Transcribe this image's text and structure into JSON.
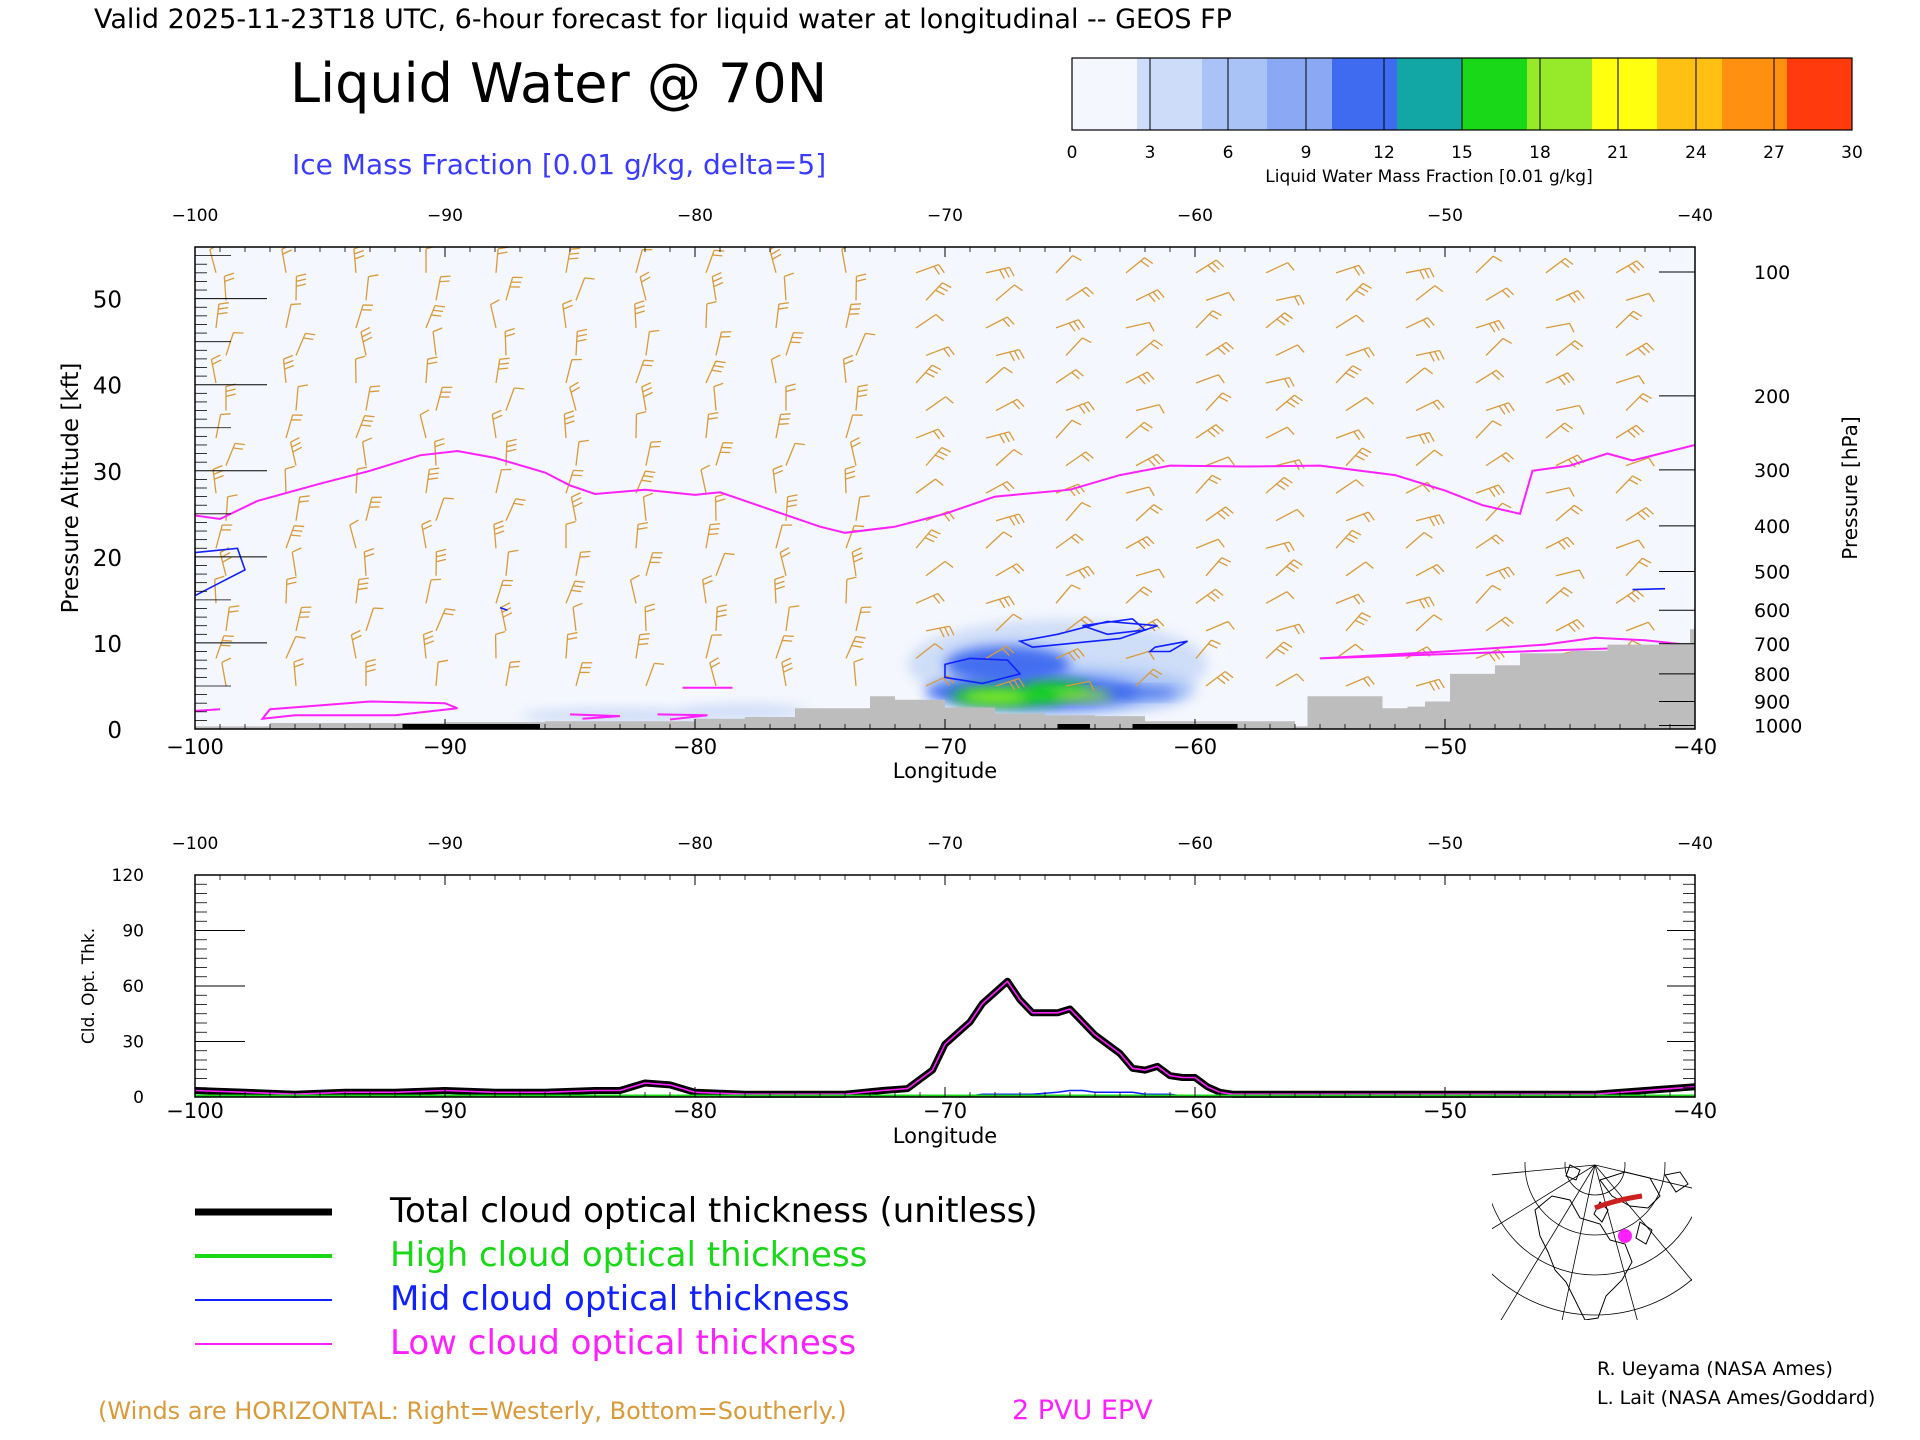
{
  "header": {
    "valid_line": "Valid 2025-11-23T18 UTC, 6-hour forecast for liquid water at longitudinal -- GEOS FP",
    "title": "Liquid Water @ 70N",
    "ice_label": "Ice Mass Fraction [0.01 g/kg, delta=5]"
  },
  "colorbar": {
    "label": "Liquid Water Mass Fraction [0.01 g/kg]",
    "ticks": [
      "0",
      "3",
      "6",
      "9",
      "12",
      "15",
      "18",
      "21",
      "24",
      "27",
      "30"
    ],
    "colors": [
      "#f4f7fd",
      "#cddcf8",
      "#a9c3f6",
      "#8aa8f3",
      "#3e6bef",
      "#12a7a5",
      "#19d818",
      "#96ea2a",
      "#ffff10",
      "#ffc014",
      "#ff9010",
      "#ff3a0c"
    ]
  },
  "chart_data": [
    {
      "type": "heatmap",
      "title": "Liquid Water @ 70N",
      "xlabel": "Longitude",
      "ylabel": "Pressure Altitude [kft]",
      "ylabel_right": "Pressure [hPa]",
      "xlim": [
        -100,
        -40
      ],
      "ylim": [
        0,
        56
      ],
      "x_ticks": [
        "-100",
        "-90",
        "-80",
        "-70",
        "-60",
        "-50",
        "-40"
      ],
      "y_ticks": [
        "0",
        "10",
        "20",
        "30",
        "40",
        "50"
      ],
      "pressure_ticks": [
        {
          "label": "100",
          "kft": 53.1
        },
        {
          "label": "200",
          "kft": 38.7
        },
        {
          "label": "300",
          "kft": 30.1
        },
        {
          "label": "400",
          "kft": 23.6
        },
        {
          "label": "500",
          "kft": 18.3
        },
        {
          "label": "600",
          "kft": 13.8
        },
        {
          "label": "700",
          "kft": 9.9
        },
        {
          "label": "800",
          "kft": 6.4
        },
        {
          "label": "900",
          "kft": 3.2
        },
        {
          "label": "1000",
          "kft": 0.4
        }
      ],
      "epv_2pvu_line": {
        "label": "2 PVU EPV",
        "points": [
          [
            -100,
            24.8
          ],
          [
            -99,
            24.4
          ],
          [
            -97.5,
            26.5
          ],
          [
            -95,
            28.5
          ],
          [
            -93,
            30
          ],
          [
            -91,
            31.8
          ],
          [
            -89.5,
            32.3
          ],
          [
            -88,
            31.5
          ],
          [
            -86,
            29.8
          ],
          [
            -85,
            28.3
          ],
          [
            -84,
            27.3
          ],
          [
            -82,
            27.8
          ],
          [
            -80,
            27.2
          ],
          [
            -79,
            27.5
          ],
          [
            -77.5,
            26
          ],
          [
            -75,
            23.5
          ],
          [
            -74,
            22.8
          ],
          [
            -72,
            23.5
          ],
          [
            -70,
            25
          ],
          [
            -68,
            27
          ],
          [
            -65,
            27.8
          ],
          [
            -63,
            29.5
          ],
          [
            -61,
            30.6
          ],
          [
            -58,
            30.5
          ],
          [
            -55,
            30.6
          ],
          [
            -52,
            29.5
          ],
          [
            -50,
            27.7
          ],
          [
            -48.5,
            26
          ],
          [
            -47,
            25
          ],
          [
            -46.5,
            30
          ],
          [
            -45,
            30.6
          ],
          [
            -43.5,
            32
          ],
          [
            -42.5,
            31.2
          ],
          [
            -40,
            33
          ]
        ]
      },
      "epv_low_contours": [
        [
          [
            -97,
            2.3
          ],
          [
            -93,
            3.2
          ],
          [
            -90,
            3.0
          ],
          [
            -89.5,
            2.4
          ],
          [
            -92,
            1.6
          ],
          [
            -96,
            1.6
          ],
          [
            -97.3,
            1.2
          ]
        ],
        [
          [
            -100,
            2.1
          ],
          [
            -99,
            2.3
          ]
        ],
        [
          [
            -85,
            1.7
          ],
          [
            -83,
            1.5
          ],
          [
            -84.5,
            1.2
          ]
        ],
        [
          [
            -81.5,
            1.7
          ],
          [
            -79.5,
            1.6
          ],
          [
            -81,
            1.1
          ]
        ],
        [
          [
            -80.5,
            4.8
          ],
          [
            -78.5,
            4.8
          ]
        ],
        [
          [
            -55,
            8.2
          ],
          [
            -50,
            9.0
          ],
          [
            -46,
            9.8
          ],
          [
            -44,
            10.6
          ],
          [
            -42,
            10.3
          ],
          [
            -40,
            9.7
          ]
        ]
      ],
      "ice_contours": [
        [
          [
            -100,
            20.5
          ],
          [
            -98.3,
            21
          ],
          [
            -98,
            18.5
          ],
          [
            -99,
            17
          ],
          [
            -100,
            15.5
          ]
        ],
        [
          [
            -70,
            7.5
          ],
          [
            -69,
            8.2
          ],
          [
            -67.5,
            8
          ],
          [
            -67,
            6.4
          ],
          [
            -68.5,
            5.3
          ],
          [
            -70,
            6
          ]
        ],
        [
          [
            -66.5,
            9.5
          ],
          [
            -63,
            10.5
          ],
          [
            -61.5,
            12
          ],
          [
            -63.5,
            12.5
          ],
          [
            -65.5,
            11
          ],
          [
            -67,
            10.2
          ]
        ],
        [
          [
            -64.5,
            12
          ],
          [
            -62.5,
            12.8
          ],
          [
            -62,
            11.5
          ],
          [
            -63.5,
            11
          ]
        ],
        [
          [
            -61.6,
            9.5
          ],
          [
            -60.3,
            10.2
          ],
          [
            -61,
            9
          ],
          [
            -61.8,
            9
          ]
        ],
        [
          [
            -42.5,
            16.2
          ],
          [
            -41.2,
            16.3
          ]
        ],
        [
          [
            -87.8,
            14.1
          ],
          [
            -87.5,
            13.8
          ]
        ]
      ],
      "liquid_water_blobs": [
        {
          "lon": -65.5,
          "kft": 7.5,
          "rlon": 6,
          "rkft": 5.2,
          "value": 3
        },
        {
          "lon": -65,
          "kft": 4.5,
          "rlon": 5,
          "rkft": 2.8,
          "value": 6
        },
        {
          "lon": -67.5,
          "kft": 7.5,
          "rlon": 2.5,
          "rkft": 2.2,
          "value": 10
        },
        {
          "lon": -66.5,
          "kft": 4.3,
          "rlon": 4.3,
          "rkft": 1.9,
          "value": 12
        },
        {
          "lon": -67.5,
          "kft": 3.8,
          "rlon": 2.3,
          "rkft": 1.1,
          "value": 17
        },
        {
          "lon": -65.5,
          "kft": 4.6,
          "rlon": 1.3,
          "rkft": 0.9,
          "value": 17
        },
        {
          "lon": -68,
          "kft": 3.7,
          "rlon": 1.3,
          "rkft": 0.7,
          "value": 19
        },
        {
          "lon": -64.5,
          "kft": 3.9,
          "rlon": 1.2,
          "rkft": 0.6,
          "value": 18
        },
        {
          "lon": -62,
          "kft": 4.2,
          "rlon": 1.3,
          "rkft": 0.6,
          "value": 11
        },
        {
          "lon": -83,
          "kft": 1.5,
          "rlon": 4,
          "rkft": 0.9,
          "value": 3
        },
        {
          "lon": -78,
          "kft": 2,
          "rlon": 2.5,
          "rkft": 0.9,
          "value": 3
        },
        {
          "lon": -43.5,
          "kft": 17,
          "rlon": 0.8,
          "rkft": 1.2,
          "value": 2
        }
      ],
      "terrain_steps": [
        [
          -100,
          0.3
        ],
        [
          -97,
          0.7
        ],
        [
          -90,
          0.8
        ],
        [
          -86,
          0.9
        ],
        [
          -80,
          1.2
        ],
        [
          -78,
          1.4
        ],
        [
          -76,
          2.4
        ],
        [
          -73,
          3.8
        ],
        [
          -72,
          3.4
        ],
        [
          -70,
          2.5
        ],
        [
          -68,
          1.8
        ],
        [
          -66,
          1.6
        ],
        [
          -64,
          1.5
        ],
        [
          -62,
          0.9
        ],
        [
          -58,
          0.9
        ],
        [
          -56,
          0.3
        ],
        [
          -55.5,
          3.8
        ],
        [
          -53,
          3.8
        ],
        [
          -52.5,
          2.4
        ],
        [
          -51.5,
          2.6
        ],
        [
          -50.8,
          3.2
        ],
        [
          -50,
          3.2
        ],
        [
          -49.8,
          6.4
        ],
        [
          -48,
          7.4
        ],
        [
          -47,
          8.8
        ],
        [
          -45,
          9.1
        ],
        [
          -43.5,
          9.8
        ],
        [
          -41,
          10
        ],
        [
          -40.2,
          11.6
        ],
        [
          -40,
          11.6
        ]
      ],
      "coastal_bars": [
        [
          -91.7,
          -86.2
        ],
        [
          -65.5,
          -64.2
        ],
        [
          -62.5,
          -58.3
        ]
      ]
    },
    {
      "type": "line",
      "xlabel": "Longitude",
      "ylabel": "Cld. Opt. Thk.",
      "xlim": [
        -100,
        -40
      ],
      "ylim": [
        0,
        120
      ],
      "x_ticks": [
        "-100",
        "-90",
        "-80",
        "-70",
        "-60",
        "-50",
        "-40"
      ],
      "y_ticks": [
        "0",
        "30",
        "60",
        "90",
        "120"
      ],
      "x": [
        -100,
        -98,
        -96,
        -94,
        -92,
        -90,
        -88,
        -86,
        -84,
        -83,
        -82,
        -81,
        -80,
        -78,
        -76,
        -74,
        -72.5,
        -71.5,
        -70.5,
        -70,
        -69,
        -68.5,
        -68,
        -67.5,
        -67,
        -66.5,
        -65.5,
        -65,
        -64.5,
        -64,
        -63,
        -62.5,
        -62,
        -61.5,
        -61,
        -60.5,
        -60,
        -59.5,
        -59,
        -58.5,
        -56,
        -50,
        -44,
        -42,
        -40
      ],
      "series": [
        {
          "name": "Total cloud optical thickness (unitless)",
          "color": "#000000",
          "values": [
            3,
            2,
            1,
            2,
            2,
            3,
            2,
            2,
            3,
            3,
            7,
            6,
            2,
            1,
            1,
            1,
            3,
            4,
            14,
            28,
            40,
            50,
            56,
            62,
            52,
            45,
            45,
            47,
            40,
            33,
            23,
            15,
            14,
            16,
            11,
            10,
            10,
            5,
            2,
            1,
            1,
            1,
            1,
            3,
            5
          ]
        },
        {
          "name": "High cloud optical thickness",
          "color": "#19d818",
          "values": [
            0,
            0,
            0,
            0,
            0,
            0,
            0,
            0,
            0,
            0,
            0,
            0,
            0,
            0,
            0,
            0,
            0,
            0,
            0,
            0,
            0,
            0,
            0,
            0,
            0,
            0,
            0,
            0,
            0,
            0,
            0,
            0,
            0,
            0,
            0,
            0,
            0,
            0,
            0,
            0,
            0,
            0,
            0,
            0,
            0
          ]
        },
        {
          "name": "Mid cloud optical thickness",
          "color": "#1020ff",
          "values": [
            0,
            0,
            0,
            0,
            0,
            0,
            0,
            0,
            0,
            0,
            0,
            0,
            0,
            0,
            0,
            0,
            0,
            0,
            0,
            0,
            0,
            1,
            1,
            1,
            1,
            1,
            2,
            3,
            3,
            2,
            2,
            2,
            1,
            1,
            1,
            0,
            0,
            0,
            0,
            0,
            0,
            0,
            0,
            0,
            0
          ]
        },
        {
          "name": "Low cloud optical thickness",
          "color": "#ff20ff",
          "values": [
            3,
            2,
            1,
            2,
            2,
            3,
            2,
            2,
            3,
            3,
            7,
            6,
            2,
            1,
            1,
            1,
            3,
            4,
            14,
            28,
            40,
            50,
            56,
            62,
            52,
            45,
            45,
            47,
            40,
            33,
            23,
            15,
            14,
            16,
            11,
            10,
            10,
            5,
            2,
            1,
            1,
            1,
            1,
            3,
            5
          ]
        }
      ]
    }
  ],
  "legend": [
    {
      "label": "Total cloud optical thickness (unitless)",
      "color": "#000000"
    },
    {
      "label": "High cloud optical thickness",
      "color": "#19d818"
    },
    {
      "label": "Mid cloud optical thickness",
      "color": "#1020ff"
    },
    {
      "label": "Low cloud optical thickness",
      "color": "#ff20ff"
    }
  ],
  "footer": {
    "winds_note": "(Winds are HORIZONTAL: Right=Westerly, Bottom=Southerly.)",
    "epv_label": "2 PVU EPV",
    "credit1": "R. Ueyama (NASA Ames)",
    "credit2": "L. Lait (NASA Ames/Goddard)"
  },
  "colors": {
    "wind_barb": "#d89a3a",
    "epv": "#ff20ff",
    "ice": "#1020ff",
    "terrain": "#bdbdbd",
    "plot_bg": "#f4f7fd"
  }
}
